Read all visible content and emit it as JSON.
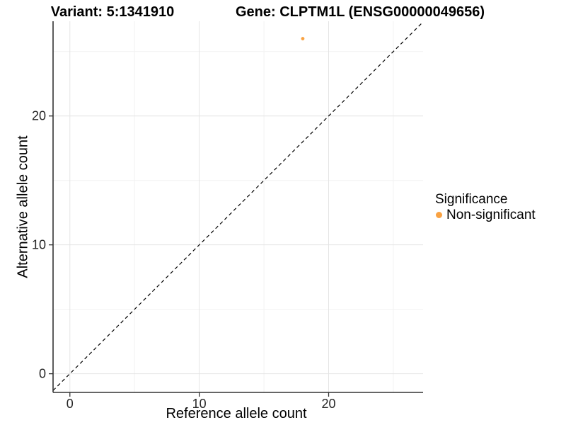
{
  "figure": {
    "title_left": "Variant: 5:1341910",
    "title_right": "Gene: CLPTM1L (ENSG00000049656)"
  },
  "legend": {
    "title": "Significance",
    "items": [
      {
        "label": "Non-significant",
        "color": "#F9A242"
      }
    ]
  },
  "chart_data": {
    "type": "scatter",
    "title_left": "Variant: 5:1341910",
    "title_right": "Gene: CLPTM1L (ENSG00000049656)",
    "xlabel": "Reference allele count",
    "ylabel": "Alternative allele count",
    "xlim": [
      -1.3,
      27.3
    ],
    "ylim": [
      -1.45,
      27.35
    ],
    "x_major_ticks": [
      0,
      10,
      20
    ],
    "y_major_ticks": [
      0,
      10,
      20
    ],
    "x_minor_ticks": [
      5,
      15,
      25
    ],
    "y_minor_ticks": [
      5,
      15,
      25
    ],
    "grid": {
      "major_color": "#E4E4E4",
      "minor_color": "#F2F2F2"
    },
    "axis_line_color": "#333333",
    "tick_color": "#333333",
    "identity_line": {
      "equation": "y = x",
      "style": "dashed",
      "color": "#000000"
    },
    "series": [
      {
        "name": "Non-significant",
        "color": "#F9A242",
        "marker_radius": 2.4,
        "points": [
          [
            18,
            26
          ]
        ]
      }
    ],
    "legend_title": "Significance",
    "legend_position": "right",
    "background": "#FFFFFF"
  }
}
